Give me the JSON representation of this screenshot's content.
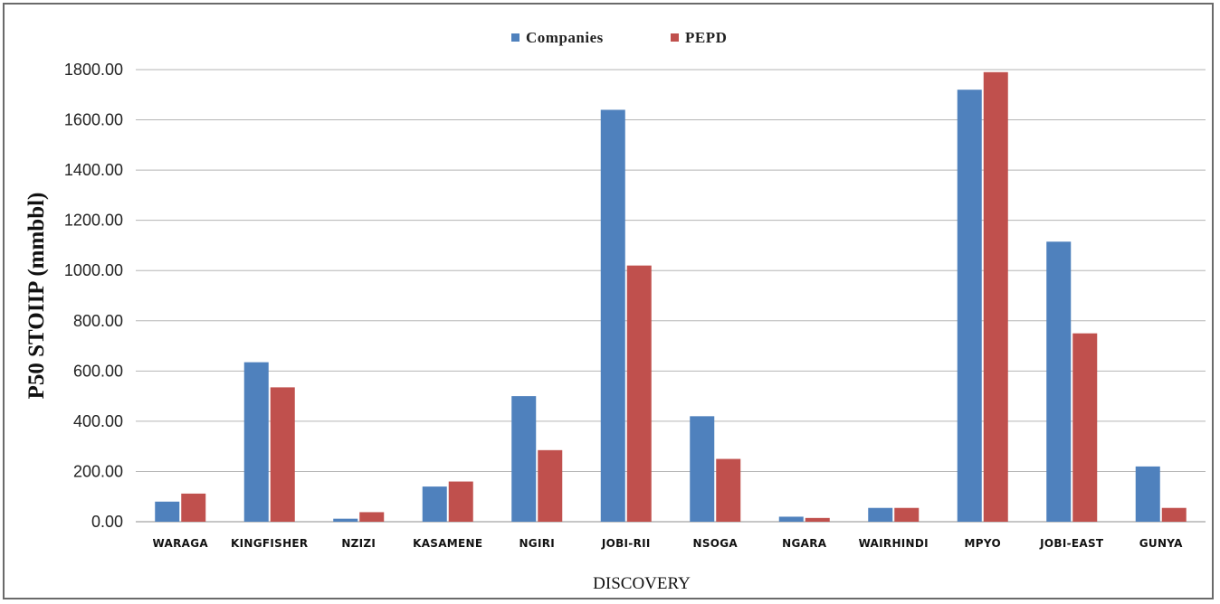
{
  "chart_data": {
    "type": "bar",
    "title": "",
    "xlabel": "DISCOVERY",
    "ylabel": "P50 STOIIP (mmbbl)",
    "ylim": [
      0,
      1800
    ],
    "yticks": [
      "0.00",
      "200.00",
      "400.00",
      "600.00",
      "800.00",
      "1000.00",
      "1200.00",
      "1400.00",
      "1600.00",
      "1800.00"
    ],
    "grid": true,
    "legend_position": "top-center",
    "categories": [
      "WARAGA",
      "KINGFISHER",
      "NZIZI",
      "KASAMENE",
      "NGIRI",
      "JOBI-RII",
      "NSOGA",
      "NGARA",
      "WAIRHINDI",
      "MPYO",
      "JOBI-EAST",
      "GUNYA"
    ],
    "series": [
      {
        "name": "Companies",
        "color": "#4f81bd",
        "values": [
          80,
          635,
          12,
          140,
          500,
          1640,
          420,
          20,
          55,
          1720,
          1115,
          220
        ]
      },
      {
        "name": "PEPD",
        "color": "#c0504d",
        "values": [
          112,
          535,
          38,
          160,
          285,
          1020,
          250,
          15,
          55,
          1790,
          750,
          55
        ]
      }
    ]
  }
}
